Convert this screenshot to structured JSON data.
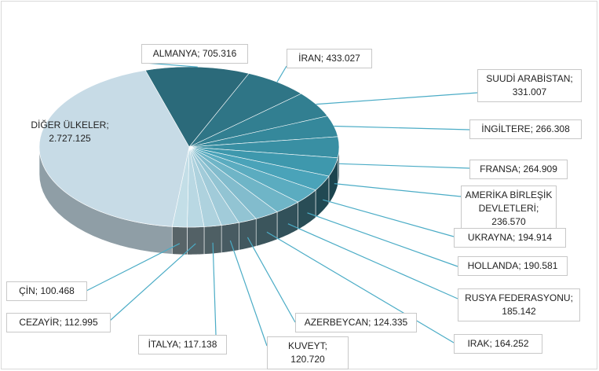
{
  "chart_data": {
    "type": "pie3d",
    "categories": [
      "ALMANYA",
      "İRAN",
      "SUUDİ ARABİSTAN",
      "İNGİLTERE",
      "FRANSA",
      "AMERİKA BİRLEŞİK DEVLETLERİ",
      "UKRAYNA",
      "HOLLANDA",
      "RUSYA FEDERASYONU",
      "IRAK",
      "AZERBEYCAN",
      "KUVEYT",
      "İTALYA",
      "CEZAYİR",
      "ÇİN",
      "DİĞER ÜLKELER"
    ],
    "values": [
      705316,
      433027,
      331007,
      266308,
      264909,
      236570,
      194914,
      190581,
      185142,
      164252,
      124335,
      120720,
      117138,
      112995,
      100468,
      2727125
    ],
    "value_labels": [
      "705.316",
      "433.027",
      "331.007",
      "266.308",
      "264.909",
      "236.570",
      "194.914",
      "190.581",
      "185.142",
      "164.252",
      "124.335",
      "120.720",
      "117.138",
      "112.995",
      "100.468",
      "2.727.125"
    ],
    "colors": [
      "#2b6a7a",
      "#2f7586",
      "#327f91",
      "#35889b",
      "#398fa3",
      "#3e98ad",
      "#4aa3b9",
      "#5bacc0",
      "#6fb5c7",
      "#82bccd",
      "#92c4d3",
      "#a1cbd9",
      "#aed2de",
      "#b9d8e3",
      "#c3dee7",
      "#c7dbe6"
    ]
  }
}
